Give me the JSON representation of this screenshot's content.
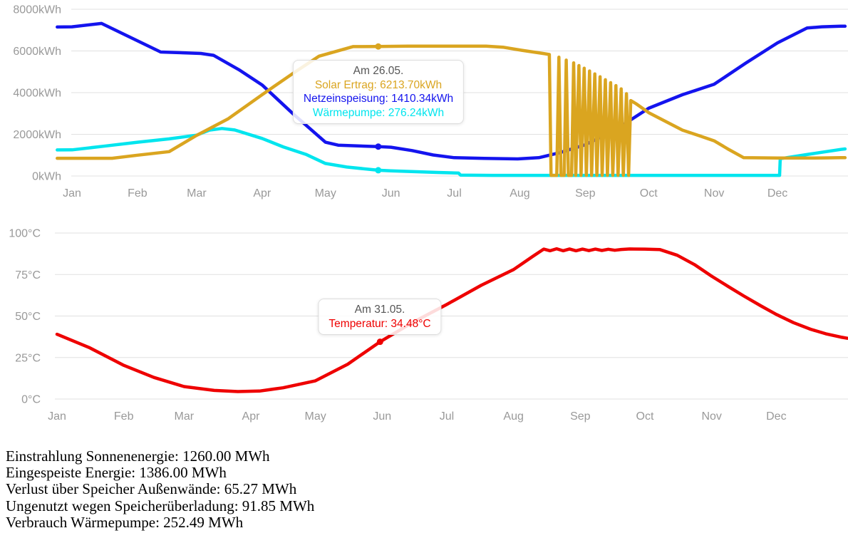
{
  "months": [
    "Jan",
    "Feb",
    "Mar",
    "Apr",
    "May",
    "Jun",
    "Jul",
    "Aug",
    "Sep",
    "Oct",
    "Nov",
    "Dec"
  ],
  "colors": {
    "solar": "#DAA520",
    "grid_feed": "#1414EE",
    "heat_pump": "#00E5EE",
    "temperature": "#EE0000",
    "axis_label": "#999999",
    "grid_line": "#E0E0E0",
    "tooltip_title": "#555555"
  },
  "chart_data": [
    {
      "name": "energy-chart",
      "type": "line",
      "y_unit": "kWh",
      "y_max": 8000,
      "grid": true,
      "y_ticks": [
        {
          "value": 8000,
          "label": "8000kWh"
        },
        {
          "value": 6000,
          "label": "6000kWh"
        },
        {
          "value": 4000,
          "label": "4000kWh"
        },
        {
          "value": 2000,
          "label": "2000kWh"
        },
        {
          "value": 0,
          "label": "0kWh"
        }
      ],
      "x_tick_labels": [
        "Jan",
        "Feb",
        "Mar",
        "Apr",
        "May",
        "Jun",
        "Jul",
        "Aug",
        "Sep",
        "Oct",
        "Nov",
        "Dec"
      ],
      "series": [
        {
          "name": "Wärmepumpe",
          "color": "#00E5EE",
          "points": [
            [
              -6,
              1250
            ],
            [
              1,
              1255
            ],
            [
              16,
              1430
            ],
            [
              32,
              1620
            ],
            [
              47,
              1780
            ],
            [
              60,
              1960
            ],
            [
              66,
              2200
            ],
            [
              72,
              2280
            ],
            [
              78,
              2210
            ],
            [
              91,
              1800
            ],
            [
              101,
              1400
            ],
            [
              112,
              1030
            ],
            [
              121,
              600
            ],
            [
              131,
              430
            ],
            [
              146,
              276
            ],
            [
              152,
              250
            ],
            [
              163,
              210
            ],
            [
              174,
              172
            ],
            [
              184,
              140
            ],
            [
              185,
              40
            ],
            [
              200,
              32
            ],
            [
              334,
              30
            ],
            [
              336,
              30
            ],
            [
              336.3,
              830
            ],
            [
              350,
              1045
            ],
            [
              365,
              1275
            ],
            [
              367,
              1300
            ]
          ]
        },
        {
          "name": "Netzeinspeisung",
          "color": "#1414EE",
          "points": [
            [
              -6,
              7150
            ],
            [
              1,
              7160
            ],
            [
              15,
              7320
            ],
            [
              43,
              5950
            ],
            [
              62,
              5880
            ],
            [
              68,
              5790
            ],
            [
              80,
              5100
            ],
            [
              91,
              4370
            ],
            [
              106,
              2950
            ],
            [
              121,
              1620
            ],
            [
              127,
              1480
            ],
            [
              146,
              1410
            ],
            [
              152,
              1380
            ],
            [
              162,
              1220
            ],
            [
              172,
              1010
            ],
            [
              182,
              880
            ],
            [
              196,
              845
            ],
            [
              212,
              820
            ],
            [
              222,
              880
            ],
            [
              232,
              1120
            ],
            [
              244,
              1500
            ],
            [
              258,
              2200
            ],
            [
              274,
              3250
            ],
            [
              290,
              3900
            ],
            [
              305,
              4400
            ],
            [
              320,
              5420
            ],
            [
              335,
              6390
            ],
            [
              349,
              7100
            ],
            [
              356,
              7160
            ],
            [
              365,
              7185
            ],
            [
              367,
              7185
            ]
          ]
        },
        {
          "name": "Solar Ertrag",
          "color": "#DAA520",
          "points": [
            [
              -6,
              850
            ],
            [
              1,
              850
            ],
            [
              20,
              850
            ],
            [
              32,
              1000
            ],
            [
              47,
              1170
            ],
            [
              60,
              1950
            ],
            [
              75,
              2750
            ],
            [
              91,
              3900
            ],
            [
              106,
              4950
            ],
            [
              118,
              5750
            ],
            [
              134,
              6210
            ],
            [
              146,
              6213.7
            ],
            [
              160,
              6230
            ],
            [
              197,
              6230
            ],
            [
              205,
              6180
            ],
            [
              214,
              6030
            ],
            [
              224,
              5880
            ],
            [
              227,
              5830
            ],
            [
              227.8,
              30
            ],
            [
              230.5,
              30
            ],
            [
              231.5,
              5700
            ],
            [
              232.5,
              30
            ],
            [
              234,
              30
            ],
            [
              235,
              5560
            ],
            [
              236,
              30
            ],
            [
              237.5,
              30
            ],
            [
              238.5,
              5430
            ],
            [
              239.5,
              30
            ],
            [
              241,
              5300
            ],
            [
              242,
              30
            ],
            [
              243.5,
              5170
            ],
            [
              244.5,
              30
            ],
            [
              246,
              5040
            ],
            [
              247,
              30
            ],
            [
              248.5,
              4900
            ],
            [
              249.5,
              30
            ],
            [
              251,
              4760
            ],
            [
              252,
              30
            ],
            [
              253.5,
              4620
            ],
            [
              254.5,
              30
            ],
            [
              256,
              4480
            ],
            [
              257,
              30
            ],
            [
              258.5,
              4340
            ],
            [
              259.5,
              30
            ],
            [
              261,
              4180
            ],
            [
              262,
              30
            ],
            [
              263.5,
              3950
            ],
            [
              264.5,
              30
            ],
            [
              265.5,
              3620
            ],
            [
              268,
              3470
            ],
            [
              274,
              3040
            ],
            [
              282,
              2620
            ],
            [
              290,
              2200
            ],
            [
              298,
              1930
            ],
            [
              305,
              1690
            ],
            [
              312,
              1270
            ],
            [
              319,
              880
            ],
            [
              335,
              862
            ],
            [
              349,
              860
            ],
            [
              357,
              868
            ],
            [
              365,
              878
            ],
            [
              367,
              880
            ]
          ]
        }
      ],
      "tooltip": {
        "title": "Am 26.05.",
        "day": 146,
        "entries": [
          {
            "text": "Solar Ertrag: 6213.70kWh",
            "label": "Solar Ertrag",
            "value": 6213.7,
            "unit": "kWh",
            "color": "#DAA520"
          },
          {
            "text": "Netzeinspeisung: 1410.34kWh",
            "label": "Netzeinspeisung",
            "value": 1410.34,
            "unit": "kWh",
            "color": "#1414EE"
          },
          {
            "text": "Wärmepumpe: 276.24kWh",
            "label": "Wärmepumpe",
            "value": 276.24,
            "unit": "kWh",
            "color": "#00E5EE"
          }
        ]
      }
    },
    {
      "name": "temperature-chart",
      "type": "line",
      "y_unit": "°C",
      "y_max": 100,
      "grid": true,
      "y_ticks": [
        {
          "value": 100,
          "label": "100°C"
        },
        {
          "value": 75,
          "label": "75°C"
        },
        {
          "value": 50,
          "label": "50°C"
        },
        {
          "value": 25,
          "label": "25°C"
        },
        {
          "value": 0,
          "label": "0°C"
        }
      ],
      "x_tick_labels": [
        "Jan",
        "Feb",
        "Mar",
        "Apr",
        "May",
        "Jun",
        "Jul",
        "Aug",
        "Sep",
        "Oct",
        "Nov",
        "Dec"
      ],
      "series": [
        {
          "name": "Temperatur",
          "color": "#EE0000",
          "points": [
            [
              1,
              39
            ],
            [
              16,
              31
            ],
            [
              32,
              20.3
            ],
            [
              46,
              13
            ],
            [
              60,
              7.5
            ],
            [
              74,
              5.2
            ],
            [
              85,
              4.5
            ],
            [
              95,
              4.8
            ],
            [
              106,
              6.8
            ],
            [
              121,
              11
            ],
            [
              136,
              21
            ],
            [
              151,
              34.48
            ],
            [
              166,
              46
            ],
            [
              182,
              57
            ],
            [
              198,
              68.5
            ],
            [
              213,
              78
            ],
            [
              222,
              86
            ],
            [
              227,
              90.3
            ],
            [
              230,
              89.3
            ],
            [
              233,
              90.5
            ],
            [
              236,
              89.3
            ],
            [
              239,
              90.4
            ],
            [
              242,
              89.3
            ],
            [
              245,
              90.3
            ],
            [
              248,
              89.4
            ],
            [
              251,
              90.3
            ],
            [
              254,
              89.5
            ],
            [
              257,
              90.2
            ],
            [
              260,
              89.6
            ],
            [
              263,
              90.1
            ],
            [
              267,
              90.4
            ],
            [
              274,
              90.3
            ],
            [
              281,
              90.0
            ],
            [
              289,
              86.6
            ],
            [
              297,
              81
            ],
            [
              305,
              74
            ],
            [
              313,
              67.5
            ],
            [
              320,
              62
            ],
            [
              328,
              56
            ],
            [
              335,
              51
            ],
            [
              343,
              46
            ],
            [
              351,
              42
            ],
            [
              358,
              39.3
            ],
            [
              365,
              37.3
            ],
            [
              368,
              36.6
            ]
          ]
        }
      ],
      "tooltip": {
        "title": "Am 31.05.",
        "day": 151,
        "entries": [
          {
            "text": "Temperatur: 34.48°C",
            "label": "Temperatur",
            "value": 34.48,
            "unit": "°C",
            "color": "#EE0000"
          }
        ]
      }
    }
  ],
  "summary": {
    "lines": [
      "Einstrahlung Sonnenenergie: 1260.00 MWh",
      "Eingespeiste Energie: 1386.00 MWh",
      "Verlust über Speicher Außenwände: 65.27 MWh",
      "Ungenutzt wegen Speicherüberladung: 91.85 MWh",
      "Verbrauch Wärmepumpe: 252.49 MWh"
    ]
  }
}
